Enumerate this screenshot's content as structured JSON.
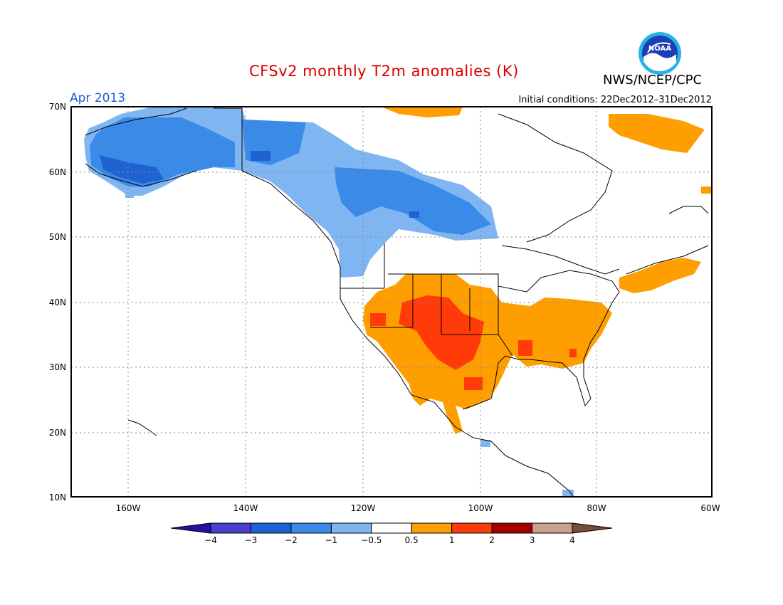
{
  "header": {
    "title": "CFSv2 monthly T2m anomalies (K)",
    "org": "NWS/NCEP/CPC",
    "month": "Apr 2013",
    "initial_conditions": "Initial conditions: 22Dec2012–31Dec2012",
    "logo_text": "NOAA"
  },
  "axes": {
    "lat_labels": [
      "70N",
      "60N",
      "50N",
      "40N",
      "30N",
      "20N",
      "10N"
    ],
    "lon_labels": [
      "160W",
      "140W",
      "120W",
      "100W",
      "80W",
      "60W"
    ]
  },
  "colorbar": {
    "labels": [
      "-4",
      "-3",
      "-2",
      "-1",
      "-0.5",
      "0.5",
      "1",
      "2",
      "3",
      "4"
    ],
    "colors": [
      "#2a0fa0",
      "#4b3fd0",
      "#1f63d3",
      "#3a8ae8",
      "#7fb6f2",
      "#ffffff",
      "#ff9e00",
      "#ff3b0a",
      "#a40000",
      "#c8a08c",
      "#7a4a3a"
    ]
  },
  "colors": {
    "cold_light": "#7fb6f2",
    "cold_mid": "#3a8ae8",
    "cold_strong": "#1f63d3",
    "warm_light": "#ff9e00",
    "warm_strong": "#ff3b0a"
  }
}
